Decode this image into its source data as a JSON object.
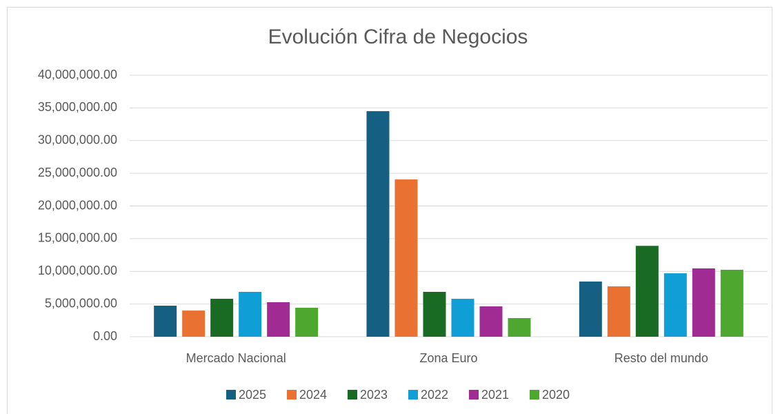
{
  "chart_data": {
    "type": "bar",
    "title": "Evolución Cifra de Negocios",
    "categories": [
      "Mercado Nacional",
      "Zona Euro",
      "Resto del mundo"
    ],
    "series": [
      {
        "name": "2025",
        "color": "#156082",
        "values": [
          4750000,
          34500000,
          8440000
        ]
      },
      {
        "name": "2024",
        "color": "#e97132",
        "values": [
          4000000,
          24060000,
          7700000
        ]
      },
      {
        "name": "2023",
        "color": "#196b24",
        "values": [
          5800000,
          6860000,
          13900000
        ]
      },
      {
        "name": "2022",
        "color": "#0f9ed5",
        "values": [
          6860000,
          5800000,
          9700000
        ]
      },
      {
        "name": "2021",
        "color": "#a02b93",
        "values": [
          5280000,
          4640000,
          10450000
        ]
      },
      {
        "name": "2020",
        "color": "#4ea72e",
        "values": [
          4430000,
          2850000,
          10240000
        ]
      }
    ],
    "ylim": [
      0,
      40000000
    ],
    "yticks": [
      {
        "value": 0,
        "label": "0.00"
      },
      {
        "value": 5000000,
        "label": "5,000,000.00"
      },
      {
        "value": 10000000,
        "label": "10,000,000.00"
      },
      {
        "value": 15000000,
        "label": "15,000,000.00"
      },
      {
        "value": 20000000,
        "label": "20,000,000.00"
      },
      {
        "value": 25000000,
        "label": "25,000,000.00"
      },
      {
        "value": 30000000,
        "label": "30,000,000.00"
      },
      {
        "value": 35000000,
        "label": "35,000,000.00"
      },
      {
        "value": 40000000,
        "label": "40,000,000.00"
      }
    ],
    "grid": true,
    "legend": "bottom"
  }
}
